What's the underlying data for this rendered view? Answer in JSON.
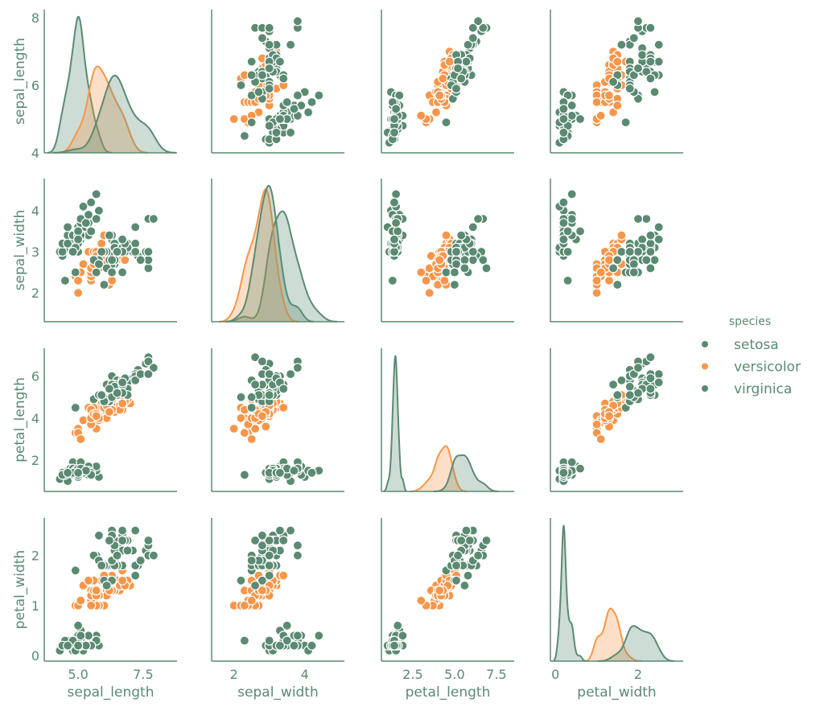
{
  "chart_data": {
    "type": "scatter",
    "kind": "pairplot",
    "diagonal": "kde",
    "grid": false,
    "legend": {
      "title": "species",
      "placement": "right",
      "entries": [
        "setosa",
        "versicolor",
        "virginica"
      ]
    },
    "colors": {
      "setosa": "#5b8a72",
      "versicolor": "#f7964a",
      "virginica": "#5b8a72",
      "text": "#5b8a72",
      "axis": "#5b8a72"
    },
    "variables": [
      {
        "name": "sepal_length",
        "xlim": [
          3.7,
          8.8
        ],
        "ylim": [
          4.0,
          8.24
        ],
        "xticks": [
          "5.0",
          "7.5"
        ],
        "yticks": [
          "4",
          "6",
          "8"
        ]
      },
      {
        "name": "sepal_width",
        "xlim": [
          1.37,
          5.12
        ],
        "ylim": [
          1.3,
          4.78
        ],
        "xticks": [
          "2",
          "4"
        ],
        "yticks": [
          "2",
          "3",
          "4"
        ]
      },
      {
        "name": "petal_length",
        "xlim": [
          0.63,
          8.56
        ],
        "ylim": [
          0.51,
          7.33
        ],
        "xticks": [
          "2.5",
          "5.0",
          "7.5"
        ],
        "yticks": [
          "2",
          "4",
          "6"
        ]
      },
      {
        "name": "petal_width",
        "xlim": [
          -0.12,
          3.09
        ],
        "ylim": [
          -0.11,
          2.75
        ],
        "xticks": [
          "0",
          "2"
        ],
        "yticks": [
          "0",
          "1",
          "2"
        ]
      }
    ],
    "series": [
      {
        "name": "setosa",
        "points": [
          [
            5.1,
            3.5,
            1.4,
            0.2
          ],
          [
            4.9,
            3.0,
            1.4,
            0.2
          ],
          [
            4.7,
            3.2,
            1.3,
            0.2
          ],
          [
            4.6,
            3.1,
            1.5,
            0.2
          ],
          [
            5.0,
            3.6,
            1.4,
            0.2
          ],
          [
            5.4,
            3.9,
            1.7,
            0.4
          ],
          [
            4.6,
            3.4,
            1.4,
            0.3
          ],
          [
            5.0,
            3.4,
            1.5,
            0.2
          ],
          [
            4.4,
            2.9,
            1.4,
            0.2
          ],
          [
            4.9,
            3.1,
            1.5,
            0.1
          ],
          [
            5.4,
            3.7,
            1.5,
            0.2
          ],
          [
            4.8,
            3.4,
            1.6,
            0.2
          ],
          [
            4.8,
            3.0,
            1.4,
            0.1
          ],
          [
            4.3,
            3.0,
            1.1,
            0.1
          ],
          [
            5.8,
            4.0,
            1.2,
            0.2
          ],
          [
            5.7,
            4.4,
            1.5,
            0.4
          ],
          [
            5.4,
            3.9,
            1.3,
            0.4
          ],
          [
            5.1,
            3.5,
            1.4,
            0.3
          ],
          [
            5.7,
            3.8,
            1.7,
            0.3
          ],
          [
            5.1,
            3.8,
            1.5,
            0.3
          ],
          [
            5.4,
            3.4,
            1.7,
            0.2
          ],
          [
            5.1,
            3.7,
            1.5,
            0.4
          ],
          [
            4.6,
            3.6,
            1.0,
            0.2
          ],
          [
            5.1,
            3.3,
            1.7,
            0.5
          ],
          [
            4.8,
            3.4,
            1.9,
            0.2
          ],
          [
            5.0,
            3.0,
            1.6,
            0.2
          ],
          [
            5.0,
            3.4,
            1.6,
            0.4
          ],
          [
            5.2,
            3.5,
            1.5,
            0.2
          ],
          [
            5.2,
            3.4,
            1.4,
            0.2
          ],
          [
            4.7,
            3.2,
            1.6,
            0.2
          ],
          [
            4.8,
            3.1,
            1.6,
            0.2
          ],
          [
            5.4,
            3.4,
            1.5,
            0.4
          ],
          [
            5.2,
            4.1,
            1.5,
            0.1
          ],
          [
            5.5,
            4.2,
            1.4,
            0.2
          ],
          [
            4.9,
            3.1,
            1.5,
            0.1
          ],
          [
            5.0,
            3.2,
            1.2,
            0.2
          ],
          [
            5.5,
            3.5,
            1.3,
            0.2
          ],
          [
            4.9,
            3.1,
            1.5,
            0.1
          ],
          [
            4.4,
            3.0,
            1.3,
            0.2
          ],
          [
            5.1,
            3.4,
            1.5,
            0.2
          ],
          [
            5.0,
            3.5,
            1.3,
            0.3
          ],
          [
            4.5,
            2.3,
            1.3,
            0.3
          ],
          [
            4.4,
            3.2,
            1.3,
            0.2
          ],
          [
            5.0,
            3.5,
            1.6,
            0.6
          ],
          [
            5.1,
            3.8,
            1.9,
            0.4
          ],
          [
            4.8,
            3.0,
            1.4,
            0.3
          ],
          [
            5.1,
            3.8,
            1.6,
            0.2
          ],
          [
            4.6,
            3.2,
            1.4,
            0.2
          ],
          [
            5.3,
            3.7,
            1.5,
            0.2
          ],
          [
            5.0,
            3.3,
            1.4,
            0.2
          ]
        ]
      },
      {
        "name": "versicolor",
        "points": [
          [
            7.0,
            3.2,
            4.7,
            1.4
          ],
          [
            6.4,
            3.2,
            4.5,
            1.5
          ],
          [
            6.9,
            3.1,
            4.9,
            1.5
          ],
          [
            5.5,
            2.3,
            4.0,
            1.3
          ],
          [
            6.5,
            2.8,
            4.6,
            1.5
          ],
          [
            5.7,
            2.8,
            4.5,
            1.3
          ],
          [
            6.3,
            3.3,
            4.7,
            1.6
          ],
          [
            4.9,
            2.4,
            3.3,
            1.0
          ],
          [
            6.6,
            2.9,
            4.6,
            1.3
          ],
          [
            5.2,
            2.7,
            3.9,
            1.4
          ],
          [
            5.0,
            2.0,
            3.5,
            1.0
          ],
          [
            5.9,
            3.0,
            4.2,
            1.5
          ],
          [
            6.0,
            2.2,
            4.0,
            1.0
          ],
          [
            6.1,
            2.9,
            4.7,
            1.4
          ],
          [
            5.6,
            2.9,
            3.6,
            1.3
          ],
          [
            6.7,
            3.1,
            4.4,
            1.4
          ],
          [
            5.6,
            3.0,
            4.5,
            1.5
          ],
          [
            5.8,
            2.7,
            4.1,
            1.0
          ],
          [
            6.2,
            2.2,
            4.5,
            1.5
          ],
          [
            5.6,
            2.5,
            3.9,
            1.1
          ],
          [
            5.9,
            3.2,
            4.8,
            1.8
          ],
          [
            6.1,
            2.8,
            4.0,
            1.3
          ],
          [
            6.3,
            2.5,
            4.9,
            1.5
          ],
          [
            6.1,
            2.8,
            4.7,
            1.2
          ],
          [
            6.4,
            2.9,
            4.3,
            1.3
          ],
          [
            6.6,
            3.0,
            4.4,
            1.4
          ],
          [
            6.8,
            2.8,
            4.8,
            1.4
          ],
          [
            6.7,
            3.0,
            5.0,
            1.7
          ],
          [
            6.0,
            2.9,
            4.5,
            1.5
          ],
          [
            5.7,
            2.6,
            3.5,
            1.0
          ],
          [
            5.5,
            2.4,
            3.8,
            1.1
          ],
          [
            5.5,
            2.4,
            3.7,
            1.0
          ],
          [
            5.8,
            2.7,
            3.9,
            1.2
          ],
          [
            6.0,
            2.7,
            5.1,
            1.6
          ],
          [
            5.4,
            3.0,
            4.5,
            1.5
          ],
          [
            6.0,
            3.4,
            4.5,
            1.6
          ],
          [
            6.7,
            3.1,
            4.7,
            1.5
          ],
          [
            6.3,
            2.3,
            4.4,
            1.3
          ],
          [
            5.6,
            3.0,
            4.1,
            1.3
          ],
          [
            5.5,
            2.5,
            4.0,
            1.3
          ],
          [
            5.5,
            2.6,
            4.4,
            1.2
          ],
          [
            6.1,
            3.0,
            4.6,
            1.4
          ],
          [
            5.8,
            2.6,
            4.0,
            1.2
          ],
          [
            5.0,
            2.3,
            3.3,
            1.0
          ],
          [
            5.6,
            2.7,
            4.2,
            1.3
          ],
          [
            5.7,
            3.0,
            4.2,
            1.2
          ],
          [
            5.7,
            2.9,
            4.2,
            1.3
          ],
          [
            6.2,
            2.9,
            4.3,
            1.3
          ],
          [
            5.1,
            2.5,
            3.0,
            1.1
          ],
          [
            5.7,
            2.8,
            4.1,
            1.3
          ]
        ]
      },
      {
        "name": "virginica",
        "points": [
          [
            6.3,
            3.3,
            6.0,
            2.5
          ],
          [
            5.8,
            2.7,
            5.1,
            1.9
          ],
          [
            7.1,
            3.0,
            5.9,
            2.1
          ],
          [
            6.3,
            2.9,
            5.6,
            1.8
          ],
          [
            6.5,
            3.0,
            5.8,
            2.2
          ],
          [
            7.6,
            3.0,
            6.6,
            2.1
          ],
          [
            4.9,
            2.5,
            4.5,
            1.7
          ],
          [
            7.3,
            2.9,
            6.3,
            1.8
          ],
          [
            6.7,
            2.5,
            5.8,
            1.8
          ],
          [
            7.2,
            3.6,
            6.1,
            2.5
          ],
          [
            6.5,
            3.2,
            5.1,
            2.0
          ],
          [
            6.4,
            2.7,
            5.3,
            1.9
          ],
          [
            6.8,
            3.0,
            5.5,
            2.1
          ],
          [
            5.7,
            2.5,
            5.0,
            2.0
          ],
          [
            5.8,
            2.8,
            5.1,
            2.4
          ],
          [
            6.4,
            3.2,
            5.3,
            2.3
          ],
          [
            6.5,
            3.0,
            5.5,
            1.8
          ],
          [
            7.7,
            3.8,
            6.7,
            2.2
          ],
          [
            7.7,
            2.6,
            6.9,
            2.3
          ],
          [
            6.0,
            2.2,
            5.0,
            1.5
          ],
          [
            6.9,
            3.2,
            5.7,
            2.3
          ],
          [
            5.6,
            2.8,
            4.9,
            2.0
          ],
          [
            7.7,
            2.8,
            6.7,
            2.0
          ],
          [
            6.3,
            2.7,
            4.9,
            1.8
          ],
          [
            6.7,
            3.3,
            5.7,
            2.1
          ],
          [
            7.2,
            3.2,
            6.0,
            1.8
          ],
          [
            6.2,
            2.8,
            4.8,
            1.8
          ],
          [
            6.1,
            3.0,
            4.9,
            1.8
          ],
          [
            6.4,
            2.8,
            5.6,
            2.1
          ],
          [
            7.2,
            3.0,
            5.8,
            1.6
          ],
          [
            7.4,
            2.8,
            6.1,
            1.9
          ],
          [
            7.9,
            3.8,
            6.4,
            2.0
          ],
          [
            6.4,
            2.8,
            5.6,
            2.2
          ],
          [
            6.3,
            2.8,
            5.1,
            1.5
          ],
          [
            6.1,
            2.6,
            5.6,
            1.4
          ],
          [
            7.7,
            3.0,
            6.1,
            2.3
          ],
          [
            6.3,
            3.4,
            5.6,
            2.4
          ],
          [
            6.4,
            3.1,
            5.5,
            1.8
          ],
          [
            6.0,
            3.0,
            4.8,
            1.8
          ],
          [
            6.9,
            3.1,
            5.4,
            2.1
          ],
          [
            6.7,
            3.1,
            5.6,
            2.4
          ],
          [
            6.9,
            3.1,
            5.1,
            2.3
          ],
          [
            5.8,
            2.7,
            5.1,
            1.9
          ],
          [
            6.8,
            3.2,
            5.9,
            2.3
          ],
          [
            6.7,
            3.3,
            5.7,
            2.5
          ],
          [
            6.7,
            3.0,
            5.2,
            2.3
          ],
          [
            6.3,
            2.5,
            5.0,
            1.9
          ],
          [
            6.5,
            3.0,
            5.2,
            2.0
          ],
          [
            6.2,
            3.4,
            5.4,
            2.3
          ],
          [
            5.9,
            3.0,
            5.1,
            1.8
          ]
        ]
      }
    ]
  }
}
